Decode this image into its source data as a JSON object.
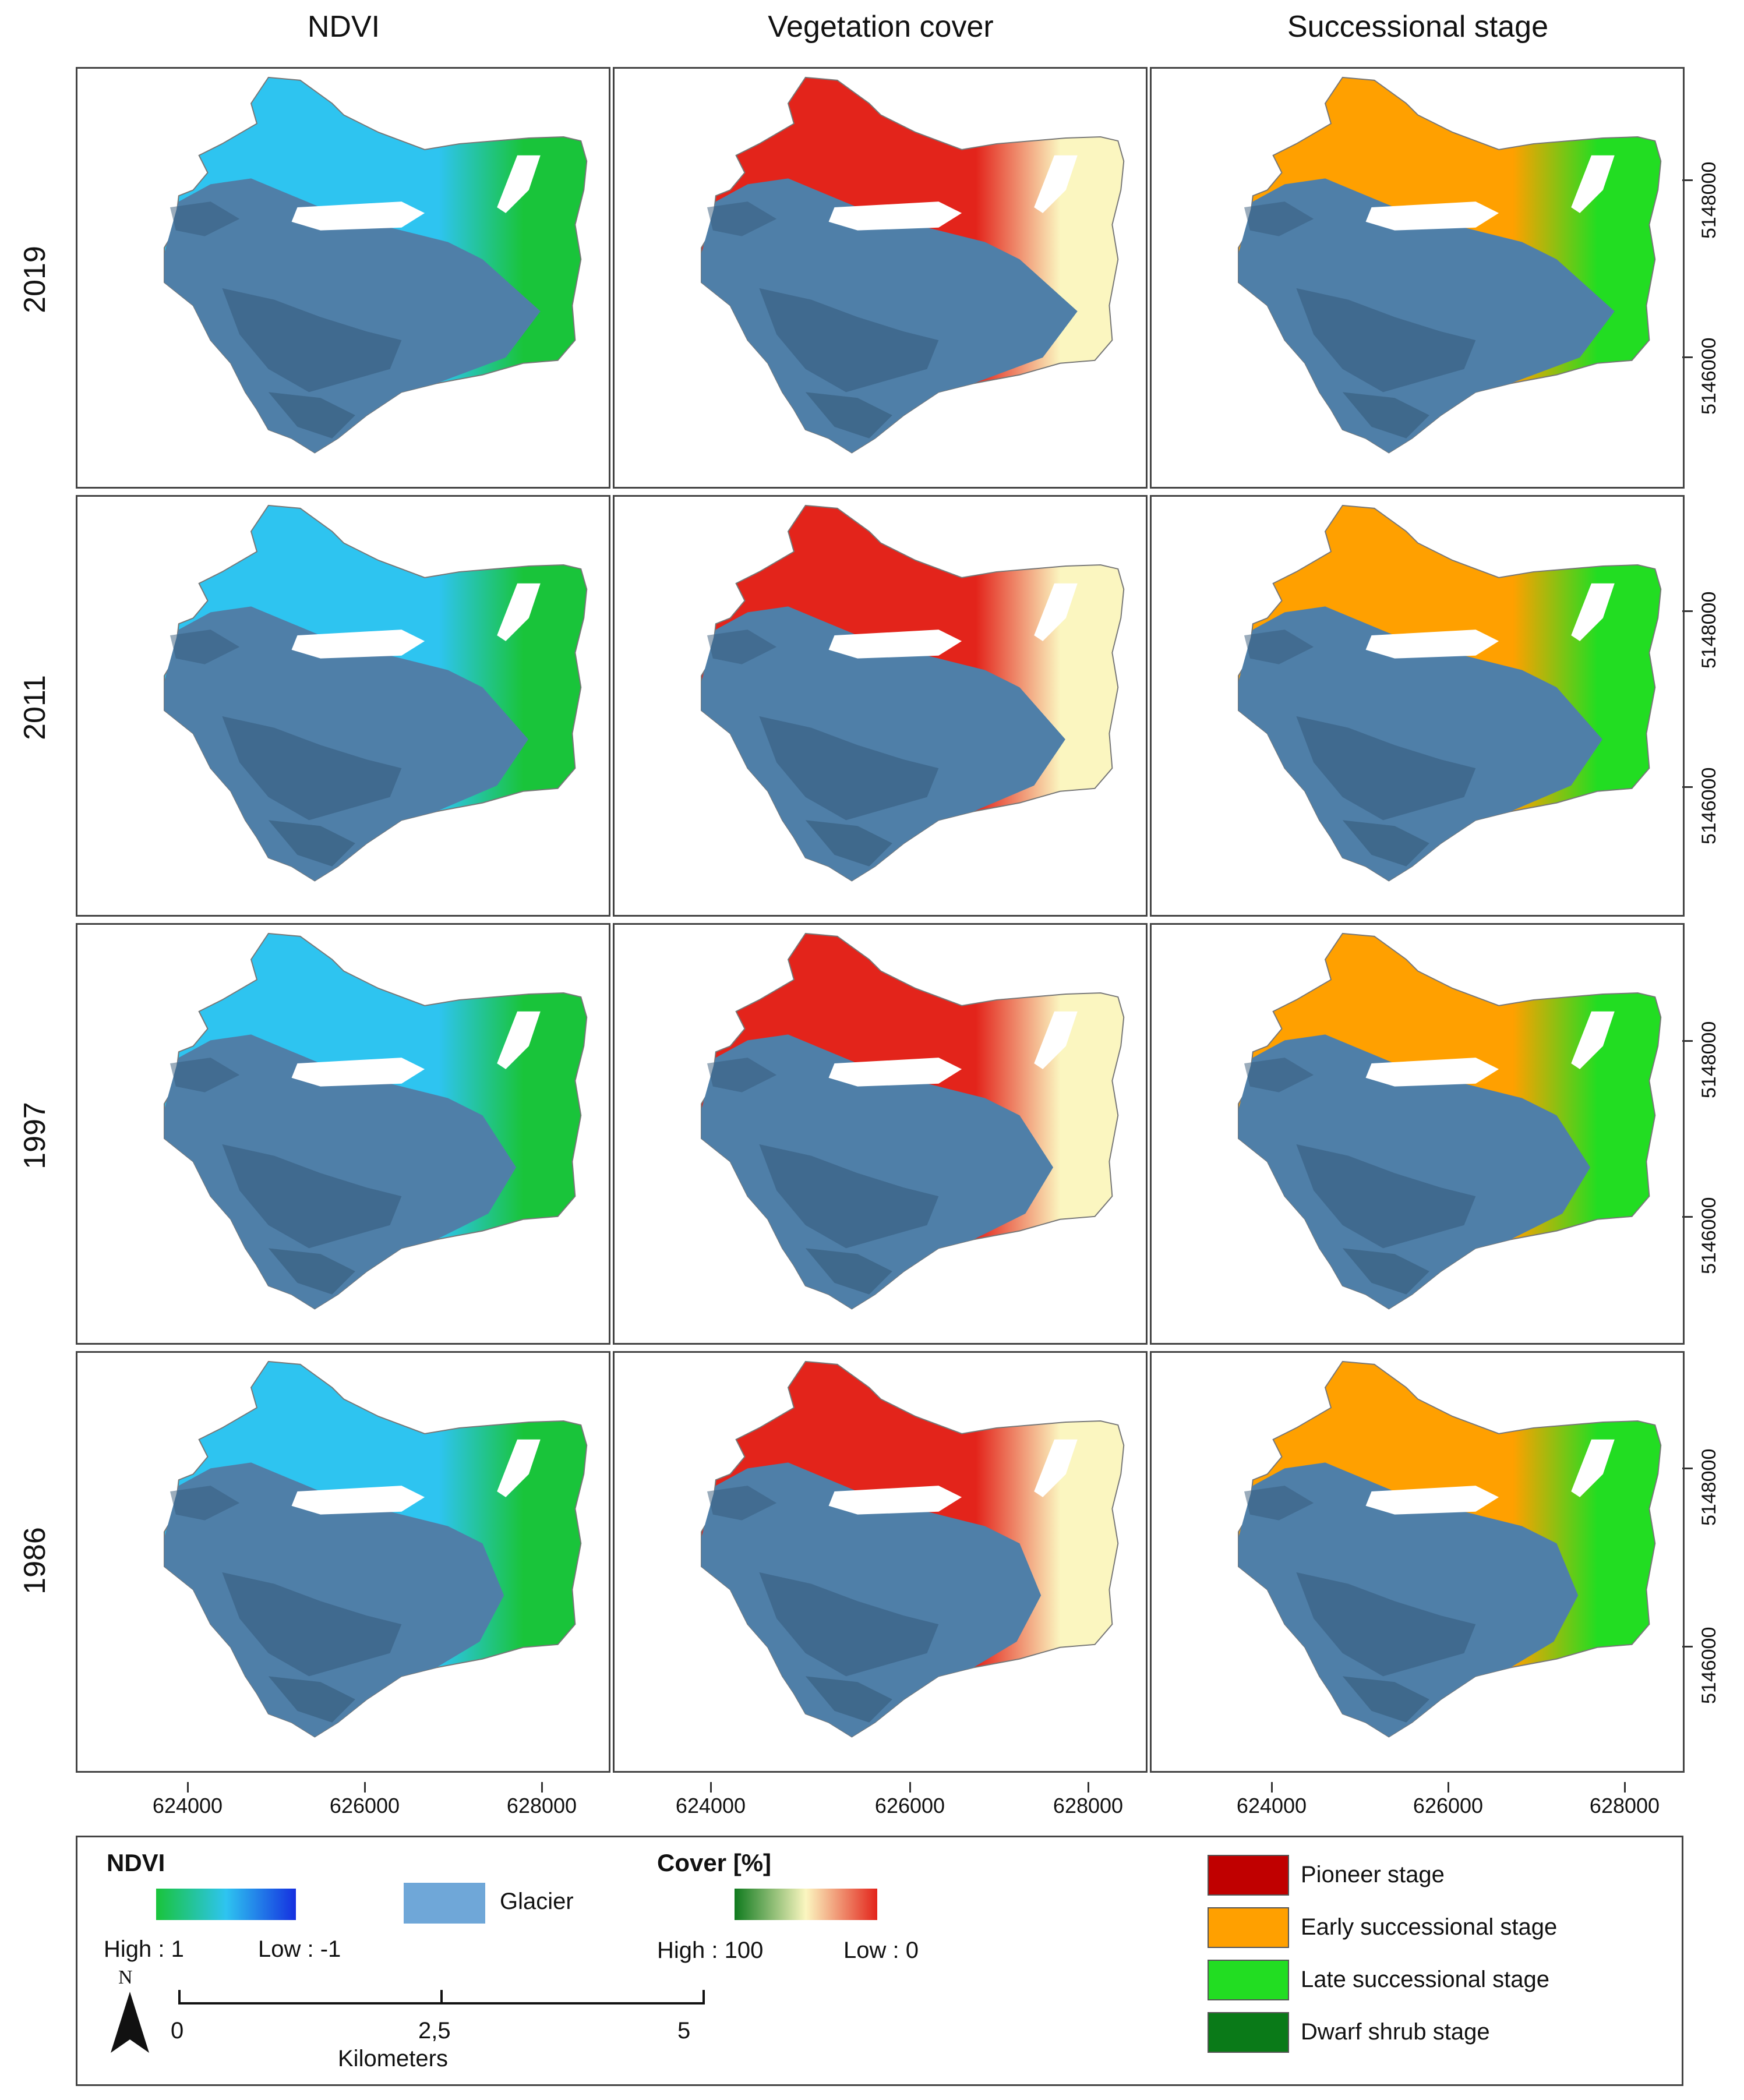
{
  "columns": [
    "NDVI",
    "Vegetation cover",
    "Successional stage"
  ],
  "rows": [
    "2019",
    "2011",
    "1997",
    "1986"
  ],
  "x_ticks": [
    "624000",
    "626000",
    "628000"
  ],
  "y_ticks": [
    "5148000",
    "5146000"
  ],
  "colors": {
    "glacier": "#4f7fa8",
    "glacier_dark": "#355a7a",
    "ndvi_low": "#1530e0",
    "ndvi_mid": "#2ec4f0",
    "ndvi_high": "#19c43a",
    "cover_high": "#0f7a1e",
    "cover_mid": "#fbf6c0",
    "cover_low": "#e3241b",
    "pioneer": "#c00000",
    "early": "#ffa000",
    "late": "#22dd22",
    "dwarf": "#0a7a18"
  },
  "legend": {
    "ndvi_title": "NDVI",
    "ndvi_high": "High : 1",
    "ndvi_low": "Low : -1",
    "glacier_label": "Glacier",
    "cover_title": "Cover [%]",
    "cover_high": "High : 100",
    "cover_low": "Low : 0",
    "stages": [
      {
        "label": "Pioneer stage",
        "color": "#c00000"
      },
      {
        "label": "Early successional stage",
        "color": "#ffa000"
      },
      {
        "label": "Late successional stage",
        "color": "#22dd22"
      },
      {
        "label": "Dwarf shrub stage",
        "color": "#0a7a18"
      }
    ],
    "north": "N",
    "scale_ticks": [
      "0",
      "2,5",
      "5"
    ],
    "scale_unit": "Kilometers"
  }
}
